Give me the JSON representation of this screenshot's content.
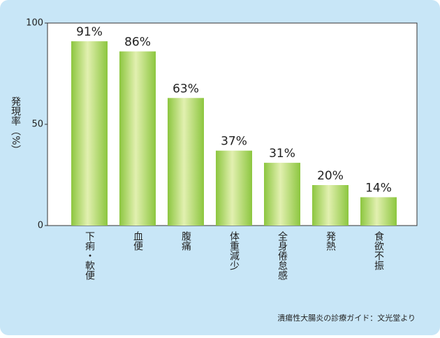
{
  "chart_data": {
    "type": "bar",
    "y_label": "発現率（%）",
    "categories": [
      "下痢・軟便",
      "血便",
      "腹痛",
      "体重減少",
      "全身倦怠感",
      "発熱",
      "食欲不振"
    ],
    "values": [
      91,
      86,
      63,
      37,
      31,
      20,
      14
    ],
    "value_labels": [
      "91%",
      "86%",
      "63%",
      "37%",
      "31%",
      "20%",
      "14%"
    ],
    "color": "#8cc63f",
    "ylim": [
      0,
      100
    ],
    "yticks": [
      0,
      50,
      100
    ],
    "source": "潰瘍性大腸炎の診療ガイド：文光堂より"
  }
}
